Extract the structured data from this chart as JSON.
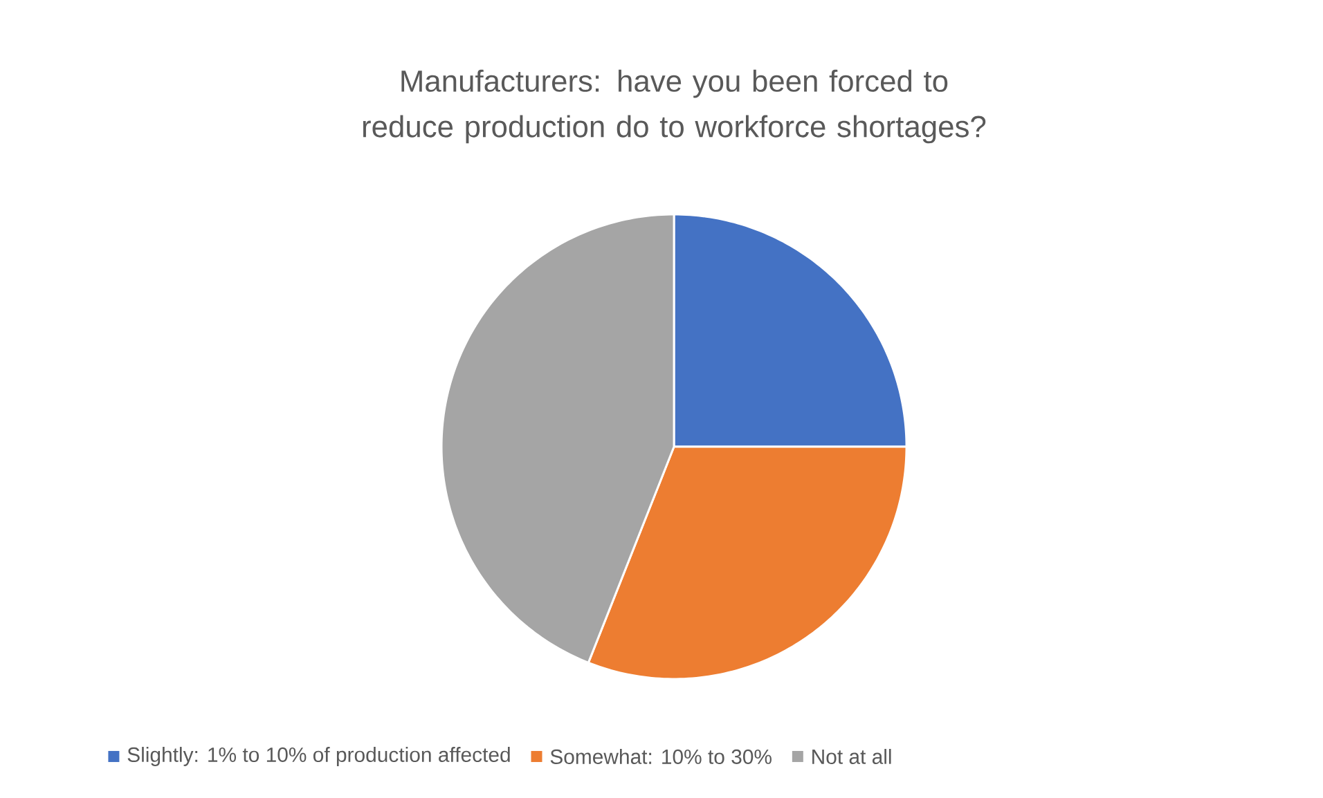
{
  "chart_data": {
    "type": "pie",
    "title": "Manufacturers: have you been forced to reduce production do to workforce shortages?",
    "categories": [
      "Slightly: 1% to 10% of production affected",
      "Somewhat: 10% to 30%",
      "Not at all"
    ],
    "values": [
      25,
      31,
      44
    ],
    "colors": [
      "#4472c4",
      "#ed7d31",
      "#a5a5a5"
    ],
    "legend": "bottom"
  }
}
